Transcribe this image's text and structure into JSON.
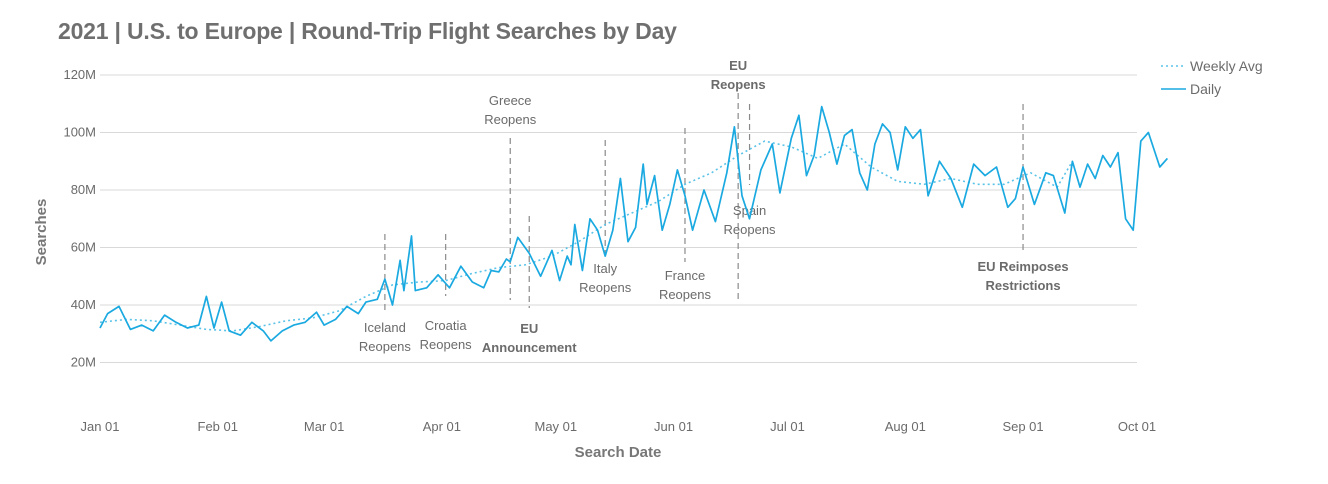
{
  "chart_data": {
    "type": "line",
    "title": "2021 | U.S. to Europe | Round-Trip Flight Searches by Day",
    "xlabel": "Search Date",
    "ylabel": "Searches",
    "x_range": [
      "2021-01-01",
      "2021-10-01"
    ],
    "ylim": [
      0,
      120000000
    ],
    "y_ticks": [
      {
        "value": 20000000,
        "label": "20M"
      },
      {
        "value": 40000000,
        "label": "40M"
      },
      {
        "value": 60000000,
        "label": "60M"
      },
      {
        "value": 80000000,
        "label": "80M"
      },
      {
        "value": 100000000,
        "label": "100M"
      },
      {
        "value": 120000000,
        "label": "120M"
      }
    ],
    "x_ticks": [
      {
        "date": "2021-01-01",
        "label": "Jan 01"
      },
      {
        "date": "2021-02-01",
        "label": "Feb 01"
      },
      {
        "date": "2021-03-01",
        "label": "Mar 01"
      },
      {
        "date": "2021-04-01",
        "label": "Apr 01"
      },
      {
        "date": "2021-05-01",
        "label": "May 01"
      },
      {
        "date": "2021-06-01",
        "label": "Jun 01"
      },
      {
        "date": "2021-07-01",
        "label": "Jul 01"
      },
      {
        "date": "2021-08-01",
        "label": "Aug 01"
      },
      {
        "date": "2021-09-01",
        "label": "Sep 01"
      },
      {
        "date": "2021-10-01",
        "label": "Oct 01"
      }
    ],
    "grid": true,
    "legend_position": "top-right",
    "series": [
      {
        "name": "Weekly Avg",
        "style": "dotted",
        "color": "#5bc3e8",
        "points": [
          [
            "2021-01-01",
            34000000
          ],
          [
            "2021-01-08",
            35000000
          ],
          [
            "2021-01-15",
            34500000
          ],
          [
            "2021-01-22",
            33000000
          ],
          [
            "2021-01-29",
            31500000
          ],
          [
            "2021-02-05",
            31000000
          ],
          [
            "2021-02-12",
            32500000
          ],
          [
            "2021-02-19",
            34500000
          ],
          [
            "2021-02-26",
            35500000
          ],
          [
            "2021-03-05",
            38000000
          ],
          [
            "2021-03-12",
            43000000
          ],
          [
            "2021-03-19",
            47000000
          ],
          [
            "2021-03-26",
            48000000
          ],
          [
            "2021-04-02",
            48500000
          ],
          [
            "2021-04-09",
            51000000
          ],
          [
            "2021-04-16",
            53000000
          ],
          [
            "2021-04-23",
            54000000
          ],
          [
            "2021-04-30",
            57000000
          ],
          [
            "2021-05-07",
            62000000
          ],
          [
            "2021-05-14",
            68000000
          ],
          [
            "2021-05-21",
            72000000
          ],
          [
            "2021-05-28",
            76000000
          ],
          [
            "2021-06-04",
            82000000
          ],
          [
            "2021-06-11",
            86000000
          ],
          [
            "2021-06-18",
            92000000
          ],
          [
            "2021-06-25",
            97000000
          ],
          [
            "2021-07-02",
            95000000
          ],
          [
            "2021-07-09",
            91000000
          ],
          [
            "2021-07-16",
            96000000
          ],
          [
            "2021-07-23",
            88000000
          ],
          [
            "2021-07-30",
            83000000
          ],
          [
            "2021-08-06",
            82000000
          ],
          [
            "2021-08-13",
            84000000
          ],
          [
            "2021-08-20",
            82000000
          ],
          [
            "2021-08-27",
            82000000
          ],
          [
            "2021-09-03",
            86000000
          ],
          [
            "2021-09-10",
            81000000
          ],
          [
            "2021-09-14",
            90000000
          ]
        ]
      },
      {
        "name": "Daily",
        "style": "solid",
        "color": "#1aa9e0",
        "points": [
          [
            "2021-01-01",
            32000000
          ],
          [
            "2021-01-03",
            37000000
          ],
          [
            "2021-01-06",
            39500000
          ],
          [
            "2021-01-09",
            31500000
          ],
          [
            "2021-01-12",
            33000000
          ],
          [
            "2021-01-15",
            31000000
          ],
          [
            "2021-01-18",
            36500000
          ],
          [
            "2021-01-21",
            34000000
          ],
          [
            "2021-01-24",
            32000000
          ],
          [
            "2021-01-27",
            33000000
          ],
          [
            "2021-01-29",
            43000000
          ],
          [
            "2021-01-31",
            32000000
          ],
          [
            "2021-02-02",
            41000000
          ],
          [
            "2021-02-04",
            31000000
          ],
          [
            "2021-02-07",
            29500000
          ],
          [
            "2021-02-10",
            34000000
          ],
          [
            "2021-02-13",
            31000000
          ],
          [
            "2021-02-15",
            27500000
          ],
          [
            "2021-02-18",
            31000000
          ],
          [
            "2021-02-21",
            33000000
          ],
          [
            "2021-02-24",
            34000000
          ],
          [
            "2021-02-27",
            37500000
          ],
          [
            "2021-03-01",
            33000000
          ],
          [
            "2021-03-04",
            35000000
          ],
          [
            "2021-03-07",
            39500000
          ],
          [
            "2021-03-10",
            37000000
          ],
          [
            "2021-03-12",
            41000000
          ],
          [
            "2021-03-15",
            42000000
          ],
          [
            "2021-03-17",
            49000000
          ],
          [
            "2021-03-19",
            40000000
          ],
          [
            "2021-03-21",
            55500000
          ],
          [
            "2021-03-22",
            45000000
          ],
          [
            "2021-03-24",
            64000000
          ],
          [
            "2021-03-25",
            45000000
          ],
          [
            "2021-03-28",
            46000000
          ],
          [
            "2021-03-31",
            50500000
          ],
          [
            "2021-04-03",
            46000000
          ],
          [
            "2021-04-06",
            53500000
          ],
          [
            "2021-04-09",
            48000000
          ],
          [
            "2021-04-12",
            46000000
          ],
          [
            "2021-04-14",
            52000000
          ],
          [
            "2021-04-16",
            51500000
          ],
          [
            "2021-04-18",
            56000000
          ],
          [
            "2021-04-19",
            55000000
          ],
          [
            "2021-04-21",
            63500000
          ],
          [
            "2021-04-24",
            58000000
          ],
          [
            "2021-04-27",
            50000000
          ],
          [
            "2021-04-30",
            59000000
          ],
          [
            "2021-05-02",
            48500000
          ],
          [
            "2021-05-04",
            57000000
          ],
          [
            "2021-05-05",
            54000000
          ],
          [
            "2021-05-06",
            68000000
          ],
          [
            "2021-05-08",
            52000000
          ],
          [
            "2021-05-10",
            70000000
          ],
          [
            "2021-05-12",
            66000000
          ],
          [
            "2021-05-14",
            57000000
          ],
          [
            "2021-05-16",
            66000000
          ],
          [
            "2021-05-18",
            84000000
          ],
          [
            "2021-05-20",
            62000000
          ],
          [
            "2021-05-22",
            67000000
          ],
          [
            "2021-05-24",
            89000000
          ],
          [
            "2021-05-25",
            75000000
          ],
          [
            "2021-05-27",
            85000000
          ],
          [
            "2021-05-29",
            66000000
          ],
          [
            "2021-05-31",
            75000000
          ],
          [
            "2021-06-02",
            87000000
          ],
          [
            "2021-06-04",
            78000000
          ],
          [
            "2021-06-06",
            66000000
          ],
          [
            "2021-06-09",
            80000000
          ],
          [
            "2021-06-12",
            69000000
          ],
          [
            "2021-06-15",
            86000000
          ],
          [
            "2021-06-17",
            102000000
          ],
          [
            "2021-06-19",
            78000000
          ],
          [
            "2021-06-21",
            70000000
          ],
          [
            "2021-06-24",
            87000000
          ],
          [
            "2021-06-27",
            96000000
          ],
          [
            "2021-06-29",
            79000000
          ],
          [
            "2021-07-02",
            98000000
          ],
          [
            "2021-07-04",
            106000000
          ],
          [
            "2021-07-06",
            85000000
          ],
          [
            "2021-07-08",
            92000000
          ],
          [
            "2021-07-10",
            109000000
          ],
          [
            "2021-07-12",
            100000000
          ],
          [
            "2021-07-14",
            89000000
          ],
          [
            "2021-07-16",
            99000000
          ],
          [
            "2021-07-18",
            101000000
          ],
          [
            "2021-07-20",
            86000000
          ],
          [
            "2021-07-22",
            80000000
          ],
          [
            "2021-07-24",
            96000000
          ],
          [
            "2021-07-26",
            103000000
          ],
          [
            "2021-07-28",
            100000000
          ],
          [
            "2021-07-30",
            87000000
          ],
          [
            "2021-08-01",
            102000000
          ],
          [
            "2021-08-03",
            98000000
          ],
          [
            "2021-08-05",
            101000000
          ],
          [
            "2021-08-07",
            78000000
          ],
          [
            "2021-08-10",
            90000000
          ],
          [
            "2021-08-13",
            84000000
          ],
          [
            "2021-08-16",
            74000000
          ],
          [
            "2021-08-19",
            89000000
          ],
          [
            "2021-08-22",
            85000000
          ],
          [
            "2021-08-25",
            88000000
          ],
          [
            "2021-08-28",
            74000000
          ],
          [
            "2021-08-30",
            77000000
          ],
          [
            "2021-09-01",
            88000000
          ],
          [
            "2021-09-04",
            75000000
          ],
          [
            "2021-09-07",
            86000000
          ],
          [
            "2021-09-09",
            85000000
          ],
          [
            "2021-09-12",
            72000000
          ],
          [
            "2021-09-14",
            90000000
          ],
          [
            "2021-09-16",
            81000000
          ],
          [
            "2021-09-18",
            89000000
          ],
          [
            "2021-09-20",
            84000000
          ],
          [
            "2021-09-22",
            92000000
          ],
          [
            "2021-09-24",
            88000000
          ],
          [
            "2021-09-26",
            93000000
          ],
          [
            "2021-09-28",
            70000000
          ],
          [
            "2021-09-30",
            66000000
          ],
          [
            "2021-10-02",
            97000000
          ],
          [
            "2021-10-04",
            100000000
          ],
          [
            "2021-10-07",
            88000000
          ],
          [
            "2021-10-09",
            91000000
          ]
        ]
      }
    ],
    "annotations": [
      {
        "date": "2021-03-17",
        "label": [
          "Iceland",
          "Reopens"
        ],
        "bold": false,
        "position": "below"
      },
      {
        "date": "2021-04-02",
        "label": [
          "Croatia",
          "Reopens"
        ],
        "bold": false,
        "position": "below"
      },
      {
        "date": "2021-04-19",
        "label": [
          "Greece",
          "Reopens"
        ],
        "bold": false,
        "position": "above"
      },
      {
        "date": "2021-04-24",
        "label": [
          "EU",
          "Announcement"
        ],
        "bold": true,
        "position": "below"
      },
      {
        "date": "2021-05-14",
        "label": [
          "Italy",
          "Reopens"
        ],
        "bold": false,
        "position": "below"
      },
      {
        "date": "2021-06-04",
        "label": [
          "France",
          "Reopens"
        ],
        "bold": false,
        "position": "below"
      },
      {
        "date": "2021-06-18",
        "label": [
          "EU",
          "Reopens"
        ],
        "bold": true,
        "position": "above"
      },
      {
        "date": "2021-06-21",
        "label": [
          "Spain",
          "Reopens"
        ],
        "bold": false,
        "position": "below"
      },
      {
        "date": "2021-09-01",
        "label": [
          "EU Reimposes",
          "Restrictions"
        ],
        "bold": true,
        "position": "below"
      }
    ]
  }
}
